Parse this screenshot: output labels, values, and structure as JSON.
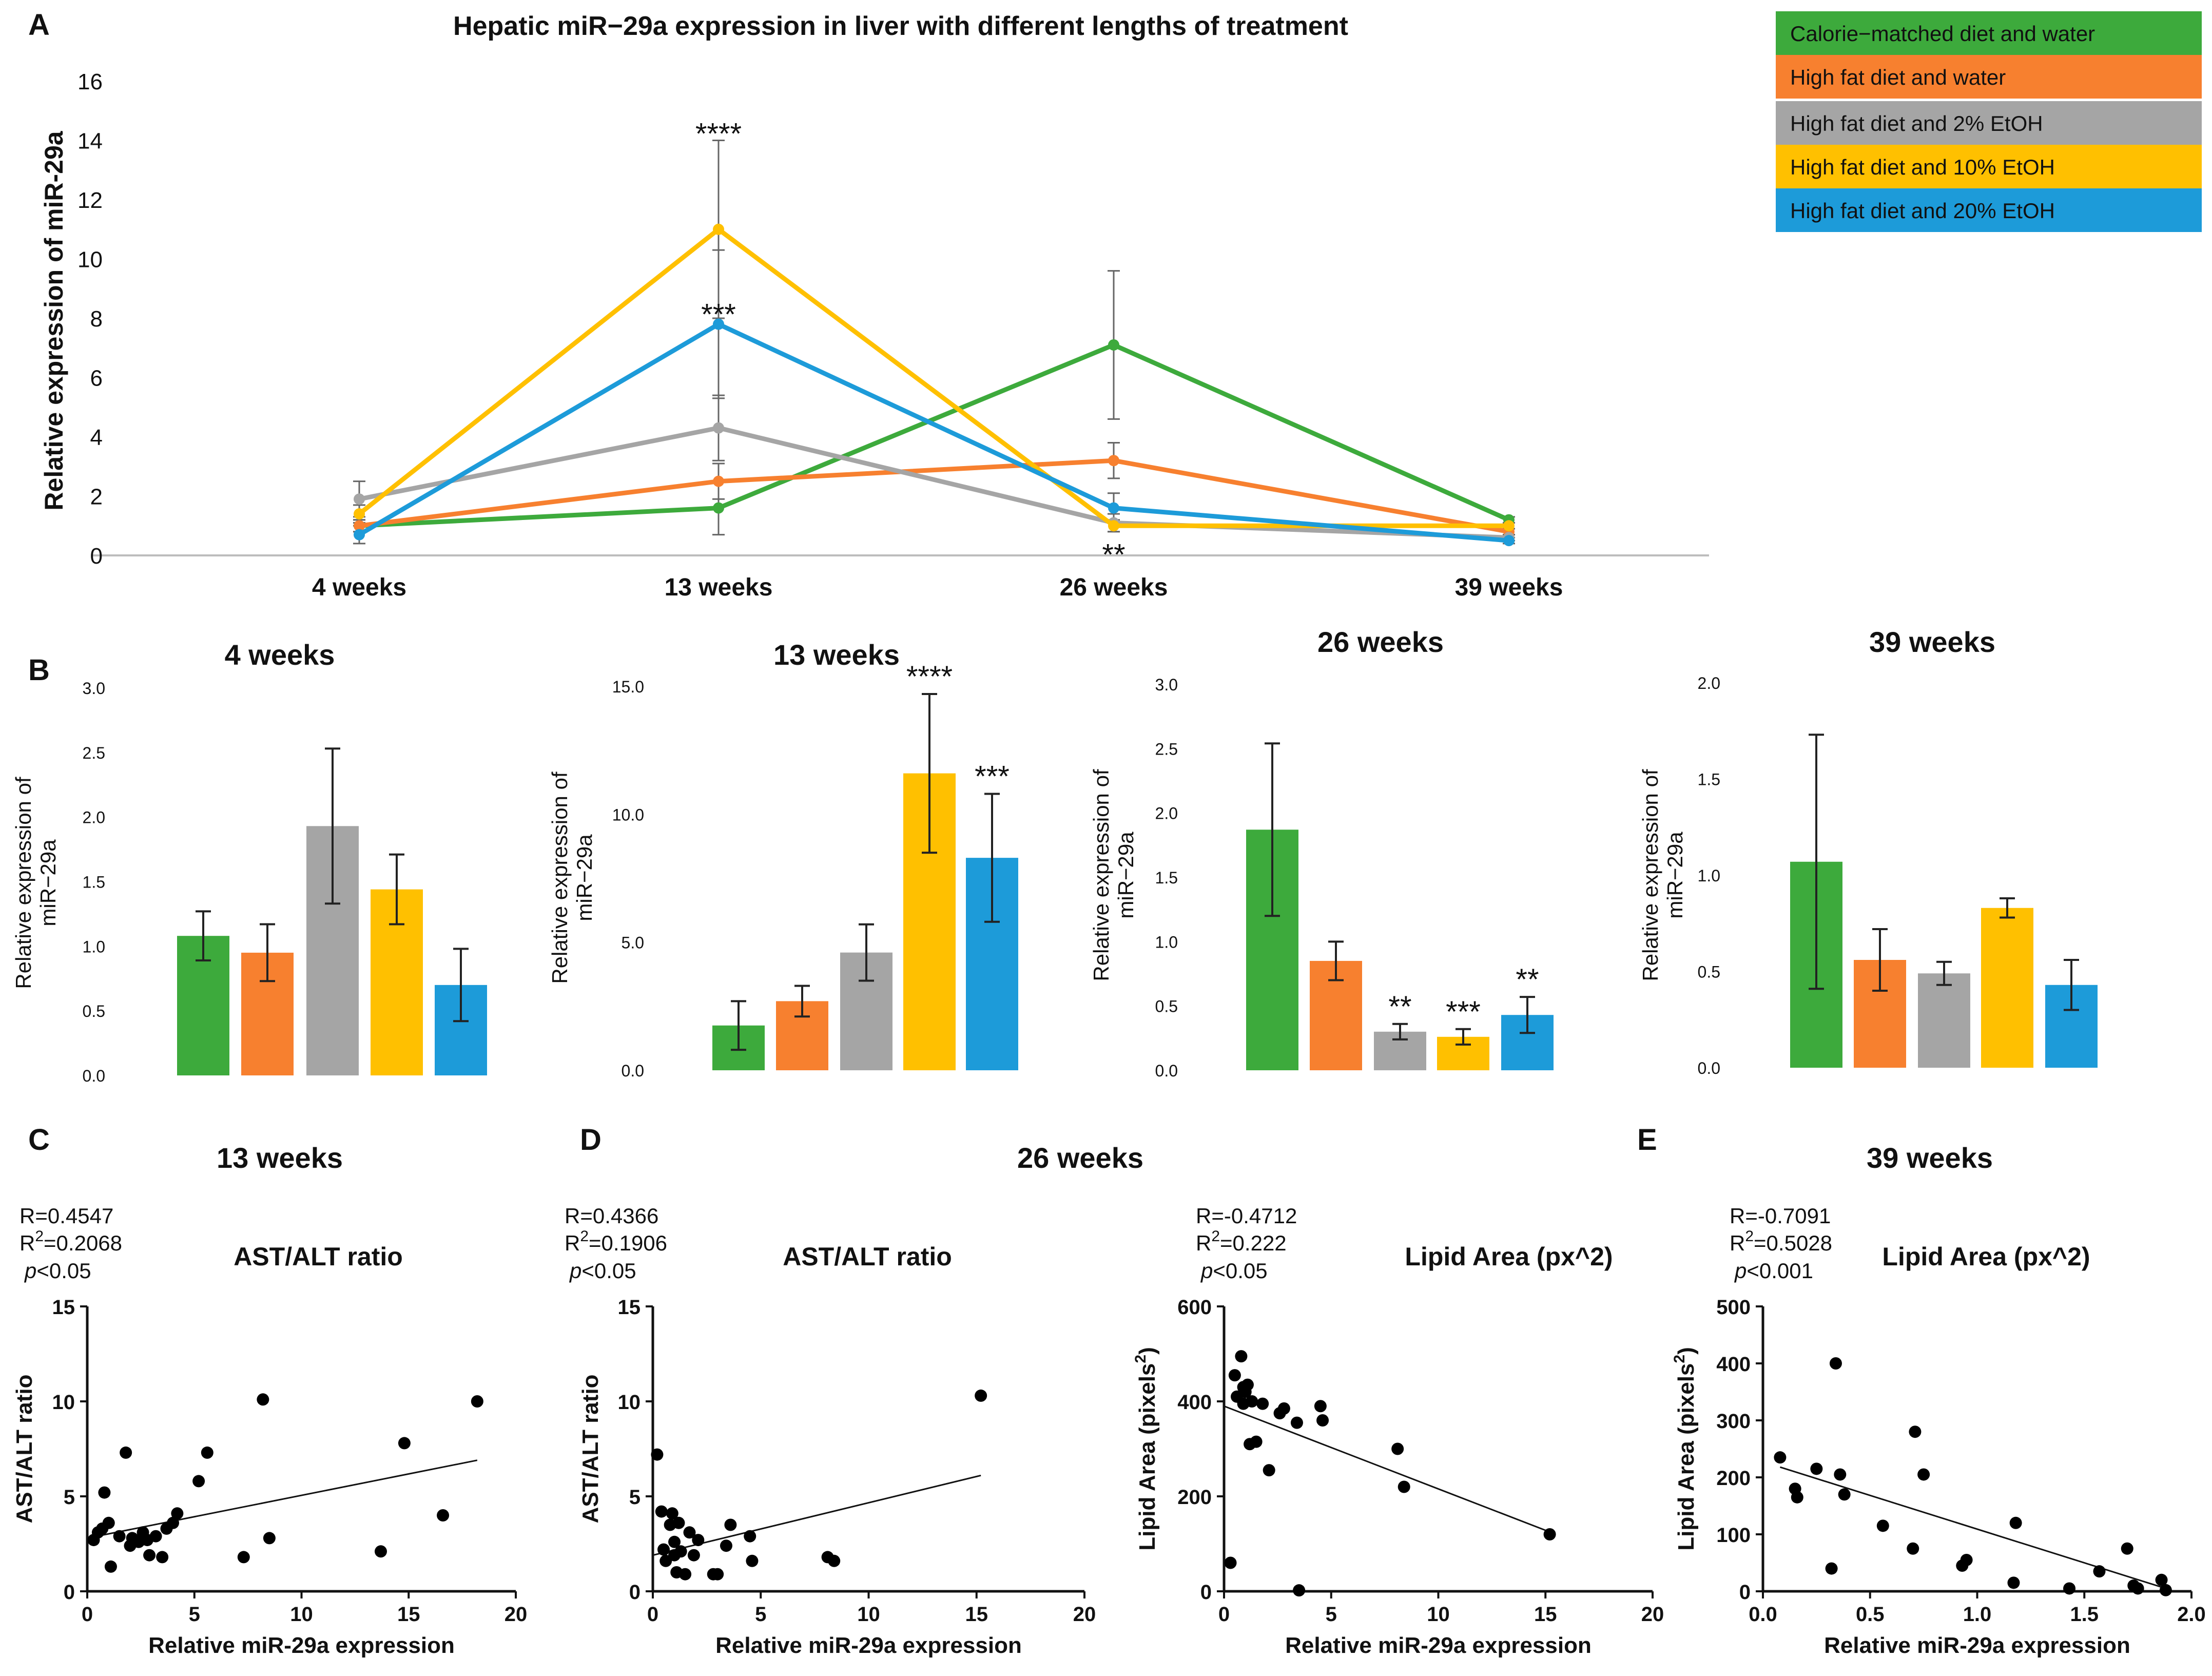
{
  "colors": {
    "green": "#3DAA3C",
    "orange": "#F7802F",
    "gray": "#A5A5A5",
    "yellow": "#FFC000",
    "blue": "#1D9BD9",
    "axis": "#222222"
  },
  "chart_data": [
    {
      "id": "A",
      "panel_label": "A",
      "type": "line",
      "title": "Hepatic miR−29a expression in liver with different lengths of treatment",
      "ylabel": "Relative expression of miR-29a",
      "xlabel": "",
      "categories": [
        "4 weeks",
        "13 weeks",
        "26 weeks",
        "39 weeks"
      ],
      "ylim": [
        0,
        16
      ],
      "yticks": [
        0,
        2,
        4,
        6,
        8,
        10,
        12,
        14,
        16
      ],
      "series": [
        {
          "name": "Calorie−matched diet and water",
          "color_key": "green",
          "values": [
            1.0,
            1.6,
            7.1,
            1.2
          ],
          "err": [
            0.2,
            0.9,
            2.5,
            0.1
          ]
        },
        {
          "name": "High fat diet and water",
          "color_key": "orange",
          "values": [
            1.0,
            2.5,
            3.2,
            0.8
          ],
          "err": [
            0.2,
            0.6,
            0.6,
            0.1
          ]
        },
        {
          "name": "High fat diet and 2% EtOH",
          "color_key": "gray",
          "values": [
            1.9,
            4.3,
            1.1,
            0.6
          ],
          "err": [
            0.6,
            1.1,
            0.3,
            0.1
          ]
        },
        {
          "name": "High fat diet and 10% EtOH",
          "color_key": "yellow",
          "values": [
            1.4,
            11.0,
            1.0,
            1.0
          ],
          "err": [
            0.3,
            3.0,
            0.2,
            0.1
          ]
        },
        {
          "name": "High fat diet and 20% EtOH",
          "color_key": "blue",
          "values": [
            0.7,
            7.8,
            1.6,
            0.5
          ],
          "err": [
            0.3,
            2.5,
            0.5,
            0.1
          ]
        }
      ],
      "annotations": [
        {
          "text": "****",
          "category": "13 weeks",
          "y": 14.4
        },
        {
          "text": "***",
          "category": "13 weeks",
          "y": 8.3
        },
        {
          "text": "**",
          "category": "26 weeks",
          "y": 0.2
        }
      ],
      "legend": "top-right"
    },
    {
      "id": "B1",
      "panel_label": "B",
      "type": "bar",
      "title": "4 weeks",
      "ylabel": "Relative expression of miR−29a",
      "ylim": [
        0,
        3.0
      ],
      "yticks": [
        "0.0",
        "0.5",
        "1.0",
        "1.5",
        "2.0",
        "2.5",
        "3.0"
      ],
      "values": [
        1.08,
        0.95,
        1.93,
        1.44,
        0.7
      ],
      "err": [
        0.19,
        0.22,
        0.6,
        0.27,
        0.28
      ],
      "stars": [
        "",
        "",
        "",
        "",
        ""
      ]
    },
    {
      "id": "B2",
      "panel_label": "",
      "type": "bar",
      "title": "13 weeks",
      "ylabel": "Relative expression of miR−29a",
      "ylim": [
        0,
        15.0
      ],
      "yticks": [
        "0.0",
        "5.0",
        "10.0",
        "15.0"
      ],
      "values": [
        1.75,
        2.7,
        4.6,
        11.6,
        8.3
      ],
      "err": [
        0.95,
        0.6,
        1.1,
        3.1,
        2.5
      ],
      "stars": [
        "",
        "",
        "",
        "****",
        "***"
      ]
    },
    {
      "id": "B3",
      "panel_label": "",
      "type": "bar",
      "title": "26 weeks",
      "ylabel": "Relative expression of miR−29a",
      "ylim": [
        0,
        3.0
      ],
      "yticks": [
        "0.0",
        "0.5",
        "1.0",
        "1.5",
        "2.0",
        "2.5",
        "3.0"
      ],
      "values": [
        1.87,
        0.85,
        0.3,
        0.26,
        0.43
      ],
      "err": [
        0.67,
        0.15,
        0.06,
        0.06,
        0.14
      ],
      "stars": [
        "",
        "",
        "**",
        "***",
        "**"
      ]
    },
    {
      "id": "B4",
      "panel_label": "",
      "type": "bar",
      "title": "39 weeks",
      "ylabel": "Relative expression of miR−29a",
      "ylim": [
        0,
        2.0
      ],
      "yticks": [
        "0.0",
        "0.5",
        "1.0",
        "1.5",
        "2.0"
      ],
      "values": [
        1.07,
        0.56,
        0.49,
        0.83,
        0.43
      ],
      "err": [
        0.66,
        0.16,
        0.06,
        0.05,
        0.13
      ],
      "stars": [
        "",
        "",
        "",
        "",
        ""
      ]
    },
    {
      "id": "C",
      "panel_label": "C",
      "type": "scatter",
      "title": "13 weeks",
      "subtitle": "AST/ALT ratio",
      "stats": {
        "r": "R=0.4547",
        "r2_prefix": "R",
        "r2_sup": "2",
        "r2_value": "=0.2068",
        "p_italic": "p",
        "p_rest": "<0.05"
      },
      "xlabel": "Relative miR-29a expression",
      "ylabel": "AST/ALT ratio",
      "xlim": [
        0,
        20
      ],
      "ylim": [
        0,
        15
      ],
      "xticks": [
        "0",
        "5",
        "10",
        "15",
        "20"
      ],
      "yticks": [
        "0",
        "5",
        "10",
        "15"
      ],
      "fit": {
        "x0": 0,
        "y0": 2.8,
        "x1": 18.2,
        "y1": 6.9
      },
      "points": [
        [
          0.3,
          2.7
        ],
        [
          0.5,
          3.1
        ],
        [
          0.7,
          3.3
        ],
        [
          0.8,
          5.2
        ],
        [
          1.0,
          3.6
        ],
        [
          1.1,
          1.3
        ],
        [
          1.5,
          2.9
        ],
        [
          1.8,
          7.3
        ],
        [
          2.0,
          2.4
        ],
        [
          2.1,
          2.8
        ],
        [
          2.4,
          2.6
        ],
        [
          2.6,
          3.1
        ],
        [
          2.8,
          2.7
        ],
        [
          2.9,
          1.9
        ],
        [
          3.2,
          2.9
        ],
        [
          3.5,
          1.8
        ],
        [
          3.7,
          3.3
        ],
        [
          4.0,
          3.6
        ],
        [
          4.2,
          4.1
        ],
        [
          5.2,
          5.8
        ],
        [
          5.6,
          7.3
        ],
        [
          7.3,
          1.8
        ],
        [
          8.2,
          10.1
        ],
        [
          8.5,
          2.8
        ],
        [
          13.7,
          2.1
        ],
        [
          14.8,
          7.8
        ],
        [
          16.6,
          4.0
        ],
        [
          18.2,
          10.0
        ]
      ]
    },
    {
      "id": "D1",
      "panel_label": "D",
      "type": "scatter",
      "title": "26 weeks",
      "subtitle": "AST/ALT ratio",
      "stats": {
        "r": "R=0.4366",
        "r2_prefix": "R",
        "r2_sup": "2",
        "r2_value": "=0.1906",
        "p_italic": "p",
        "p_rest": "<0.05"
      },
      "xlabel": "Relative miR-29a expression",
      "ylabel": "AST/ALT ratio",
      "xlim": [
        0,
        20
      ],
      "ylim": [
        0,
        15
      ],
      "xticks": [
        "0",
        "5",
        "10",
        "15",
        "20"
      ],
      "yticks": [
        "0",
        "5",
        "10",
        "15"
      ],
      "fit": {
        "x0": 0,
        "y0": 1.9,
        "x1": 15.2,
        "y1": 6.1
      },
      "points": [
        [
          0.2,
          7.2
        ],
        [
          0.4,
          4.2
        ],
        [
          0.5,
          2.2
        ],
        [
          0.6,
          1.6
        ],
        [
          0.8,
          3.5
        ],
        [
          0.9,
          4.1
        ],
        [
          1.0,
          2.6
        ],
        [
          1.0,
          1.9
        ],
        [
          1.1,
          1.0
        ],
        [
          1.2,
          3.6
        ],
        [
          1.3,
          2.1
        ],
        [
          1.5,
          0.9
        ],
        [
          1.7,
          3.1
        ],
        [
          1.9,
          1.9
        ],
        [
          2.1,
          2.7
        ],
        [
          2.8,
          0.9
        ],
        [
          3.0,
          0.9
        ],
        [
          3.4,
          2.4
        ],
        [
          3.6,
          3.5
        ],
        [
          4.5,
          2.9
        ],
        [
          4.6,
          1.6
        ],
        [
          8.1,
          1.8
        ],
        [
          8.4,
          1.6
        ],
        [
          15.2,
          10.3
        ]
      ]
    },
    {
      "id": "D2",
      "panel_label": "",
      "type": "scatter",
      "title": "",
      "subtitle": "Lipid Area (px^2)",
      "stats": {
        "r": "R=-0.4712",
        "r2_prefix": "R",
        "r2_sup": "2",
        "r2_value": "=0.222",
        "p_italic": "p",
        "p_rest": "<0.05"
      },
      "xlabel": "Relative miR-29a expression",
      "ylabel_main": "Lipid Area  (pixels",
      "ylabel_sup": "2",
      "ylabel_end": ")",
      "xlim": [
        0,
        20
      ],
      "ylim": [
        0,
        600
      ],
      "xticks": [
        "0",
        "5",
        "10",
        "15",
        "20"
      ],
      "yticks": [
        "0",
        "200",
        "400",
        "600"
      ],
      "fit": {
        "x0": 0,
        "y0": 390,
        "x1": 15.2,
        "y1": 125
      },
      "points": [
        [
          0.3,
          60
        ],
        [
          0.5,
          455
        ],
        [
          0.6,
          410
        ],
        [
          0.8,
          495
        ],
        [
          0.9,
          430
        ],
        [
          0.9,
          395
        ],
        [
          1.0,
          420
        ],
        [
          1.1,
          435
        ],
        [
          1.2,
          310
        ],
        [
          1.3,
          400
        ],
        [
          1.5,
          315
        ],
        [
          1.8,
          395
        ],
        [
          2.1,
          255
        ],
        [
          2.6,
          375
        ],
        [
          2.8,
          385
        ],
        [
          3.4,
          355
        ],
        [
          3.5,
          2
        ],
        [
          4.5,
          390
        ],
        [
          4.6,
          360
        ],
        [
          8.1,
          300
        ],
        [
          8.4,
          220
        ],
        [
          15.2,
          120
        ]
      ]
    },
    {
      "id": "E",
      "panel_label": "E",
      "type": "scatter",
      "title": "39 weeks",
      "subtitle": "Lipid Area (px^2)",
      "stats": {
        "r": "R=-0.7091",
        "r2_prefix": "R",
        "r2_sup": "2",
        "r2_value": "=0.5028",
        "p_italic": "p",
        "p_rest": "<0.001"
      },
      "xlabel": "Relative miR-29a expression",
      "ylabel_main": "Lipid Area  (pixels",
      "ylabel_sup": "2",
      "ylabel_end": ")",
      "xlim": [
        0,
        2.0
      ],
      "ylim": [
        0,
        500
      ],
      "xticks": [
        "0.0",
        "0.5",
        "1.0",
        "1.5",
        "2.0"
      ],
      "yticks": [
        "0",
        "100",
        "200",
        "300",
        "400",
        "500"
      ],
      "fit": {
        "x0": 0.08,
        "y0": 218,
        "x1": 1.88,
        "y1": 5
      },
      "points": [
        [
          0.08,
          235
        ],
        [
          0.15,
          180
        ],
        [
          0.16,
          165
        ],
        [
          0.25,
          215
        ],
        [
          0.32,
          40
        ],
        [
          0.34,
          400
        ],
        [
          0.36,
          205
        ],
        [
          0.38,
          170
        ],
        [
          0.56,
          115
        ],
        [
          0.7,
          75
        ],
        [
          0.71,
          280
        ],
        [
          0.75,
          205
        ],
        [
          0.93,
          45
        ],
        [
          0.95,
          55
        ],
        [
          1.17,
          15
        ],
        [
          1.18,
          120
        ],
        [
          1.43,
          5
        ],
        [
          1.57,
          35
        ],
        [
          1.7,
          75
        ],
        [
          1.73,
          10
        ],
        [
          1.75,
          5
        ],
        [
          1.86,
          20
        ],
        [
          1.88,
          2
        ]
      ]
    }
  ]
}
